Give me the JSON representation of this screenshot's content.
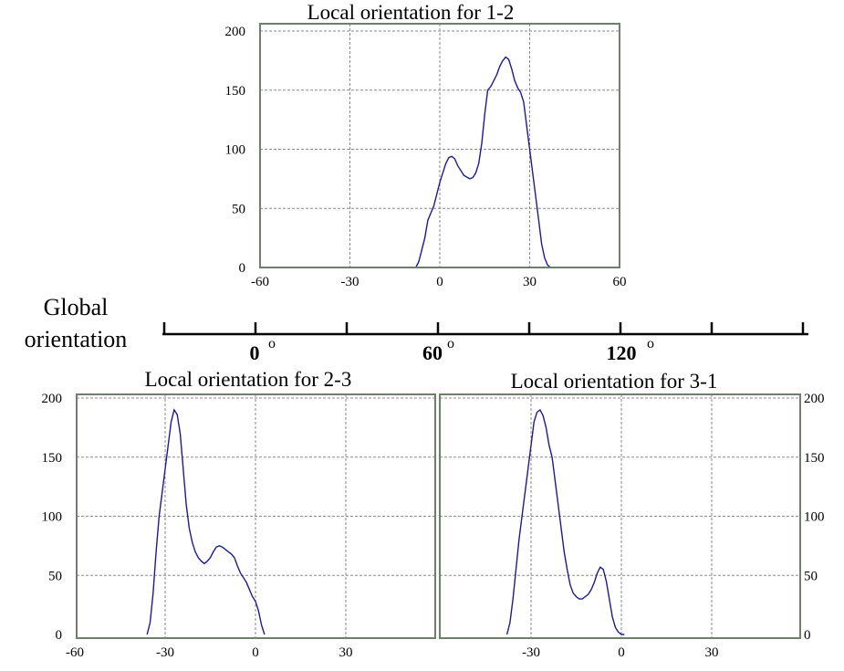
{
  "global_axis": {
    "label_line1": "Global",
    "label_line2": "orientation",
    "tick_labels": [
      "0",
      "60",
      "120"
    ],
    "degree_symbol": "o"
  },
  "colors": {
    "curve": "#1c1c8c",
    "grid": "#8a8a8a",
    "frame": "#6f7f6f"
  },
  "chart_data": [
    {
      "type": "line",
      "title": "Local orientation for 1-2",
      "xlim": [
        -60,
        60
      ],
      "ylim": [
        0,
        200
      ],
      "x_ticks": [
        -60,
        -30,
        0,
        30,
        60
      ],
      "x_tick_labels": [
        "-60",
        "-30",
        "0",
        "30",
        "60"
      ],
      "y_ticks": [
        0,
        50,
        100,
        150,
        200
      ],
      "y_tick_labels": [
        "0",
        "50",
        "100",
        "150",
        "200"
      ],
      "y_axis_side": "left",
      "grid": true,
      "x": [
        -8,
        -7,
        -5,
        -4,
        -2,
        -1,
        0,
        1,
        2,
        3,
        4,
        5,
        6,
        7,
        8,
        10,
        11,
        12,
        13,
        14,
        15,
        16,
        17,
        18,
        19,
        20,
        21,
        22,
        23,
        24,
        25,
        26,
        27,
        28,
        29,
        30,
        31,
        32,
        33,
        34,
        35,
        36,
        37,
        38,
        39,
        40
      ],
      "y": [
        0,
        5,
        25,
        40,
        52,
        62,
        72,
        80,
        88,
        93,
        94,
        92,
        86,
        82,
        78,
        75,
        76,
        80,
        88,
        105,
        130,
        150,
        153,
        158,
        163,
        170,
        175,
        178,
        176,
        168,
        158,
        152,
        148,
        140,
        120,
        100,
        80,
        60,
        40,
        20,
        8,
        2,
        0,
        0,
        0,
        0
      ]
    },
    {
      "type": "line",
      "title": "Local orientation for 2-3",
      "xlim": [
        -60,
        60
      ],
      "ylim": [
        0,
        200
      ],
      "x_ticks": [
        -60,
        -30,
        0,
        30
      ],
      "x_tick_labels": [
        "-60",
        "-30",
        "0",
        "30"
      ],
      "y_ticks": [
        0,
        50,
        100,
        150,
        200
      ],
      "y_tick_labels": [
        "0",
        "50",
        "100",
        "150",
        "200"
      ],
      "y_axis_side": "left",
      "grid": true,
      "x": [
        -36,
        -35,
        -34,
        -33,
        -32,
        -31,
        -30,
        -29,
        -28,
        -27,
        -26,
        -25,
        -24,
        -23,
        -22,
        -21,
        -20,
        -19,
        -18,
        -17,
        -16,
        -15,
        -14,
        -13,
        -12,
        -11,
        -10,
        -9,
        -8,
        -7,
        -6,
        -5,
        -4,
        -3,
        -2,
        -1,
        0,
        1,
        2,
        3
      ],
      "y": [
        0,
        10,
        35,
        70,
        100,
        120,
        140,
        160,
        180,
        190,
        186,
        170,
        140,
        110,
        90,
        78,
        70,
        65,
        62,
        60,
        62,
        65,
        70,
        74,
        75,
        74,
        72,
        70,
        68,
        65,
        58,
        52,
        48,
        44,
        38,
        32,
        28,
        20,
        8,
        0
      ]
    },
    {
      "type": "line",
      "title": "Local orientation for 3-1",
      "xlim": [
        -60,
        60
      ],
      "ylim": [
        0,
        200
      ],
      "x_ticks": [
        -30,
        0,
        30
      ],
      "x_tick_labels": [
        "-30",
        "0",
        "30"
      ],
      "y_ticks": [
        0,
        50,
        100,
        150,
        200
      ],
      "y_tick_labels": [
        "0",
        "50",
        "100",
        "150",
        "200"
      ],
      "y_axis_side": "right",
      "grid": true,
      "x": [
        -38,
        -37,
        -36,
        -35,
        -34,
        -33,
        -32,
        -31,
        -30,
        -29,
        -28,
        -27,
        -26,
        -25,
        -24,
        -23,
        -22,
        -21,
        -20,
        -19,
        -18,
        -17,
        -16,
        -15,
        -14,
        -13,
        -12,
        -11,
        -10,
        -9,
        -8,
        -7,
        -6,
        -5,
        -4,
        -3,
        -2,
        -1,
        0,
        1
      ],
      "y": [
        0,
        10,
        30,
        55,
        80,
        100,
        120,
        140,
        160,
        180,
        188,
        190,
        185,
        175,
        160,
        150,
        130,
        110,
        90,
        70,
        55,
        42,
        35,
        32,
        30,
        30,
        32,
        34,
        38,
        44,
        52,
        57,
        55,
        45,
        30,
        15,
        6,
        2,
        0,
        0
      ]
    }
  ]
}
